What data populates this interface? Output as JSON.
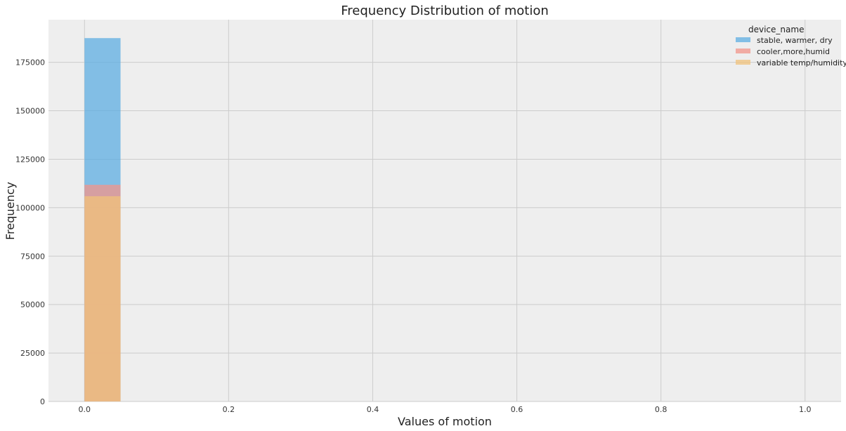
{
  "chart_data": {
    "type": "bar",
    "title": "Frequency Distribution of motion",
    "xlabel": "Values of motion",
    "ylabel": "Frequency",
    "xlim": [
      -0.05,
      1.05
    ],
    "ylim": [
      0,
      197000
    ],
    "xticks": [
      0.0,
      0.2,
      0.4,
      0.6,
      0.8,
      1.0
    ],
    "xtick_labels": [
      "0.0",
      "0.2",
      "0.4",
      "0.6",
      "0.8",
      "1.0"
    ],
    "yticks": [
      0,
      25000,
      50000,
      75000,
      100000,
      125000,
      150000,
      175000
    ],
    "ytick_labels": [
      "0",
      "25000",
      "50000",
      "75000",
      "100000",
      "125000",
      "150000",
      "175000"
    ],
    "grid": true,
    "legend": {
      "title": "device_name",
      "position": "top-right"
    },
    "series": [
      {
        "name": "stable, warmer, dry",
        "color": "#5dade2",
        "bins": [
          {
            "x0": 0.0,
            "x1": 0.05,
            "count": 187500
          }
        ]
      },
      {
        "name": "cooler,more,humid",
        "color": "#f1948a",
        "bins": [
          {
            "x0": 0.0,
            "x1": 0.05,
            "count": 111800
          }
        ]
      },
      {
        "name": "variable temp/humidity",
        "color": "#f0c27b",
        "bins": [
          {
            "x0": 0.0,
            "x1": 0.05,
            "count": 105900
          }
        ]
      }
    ]
  }
}
